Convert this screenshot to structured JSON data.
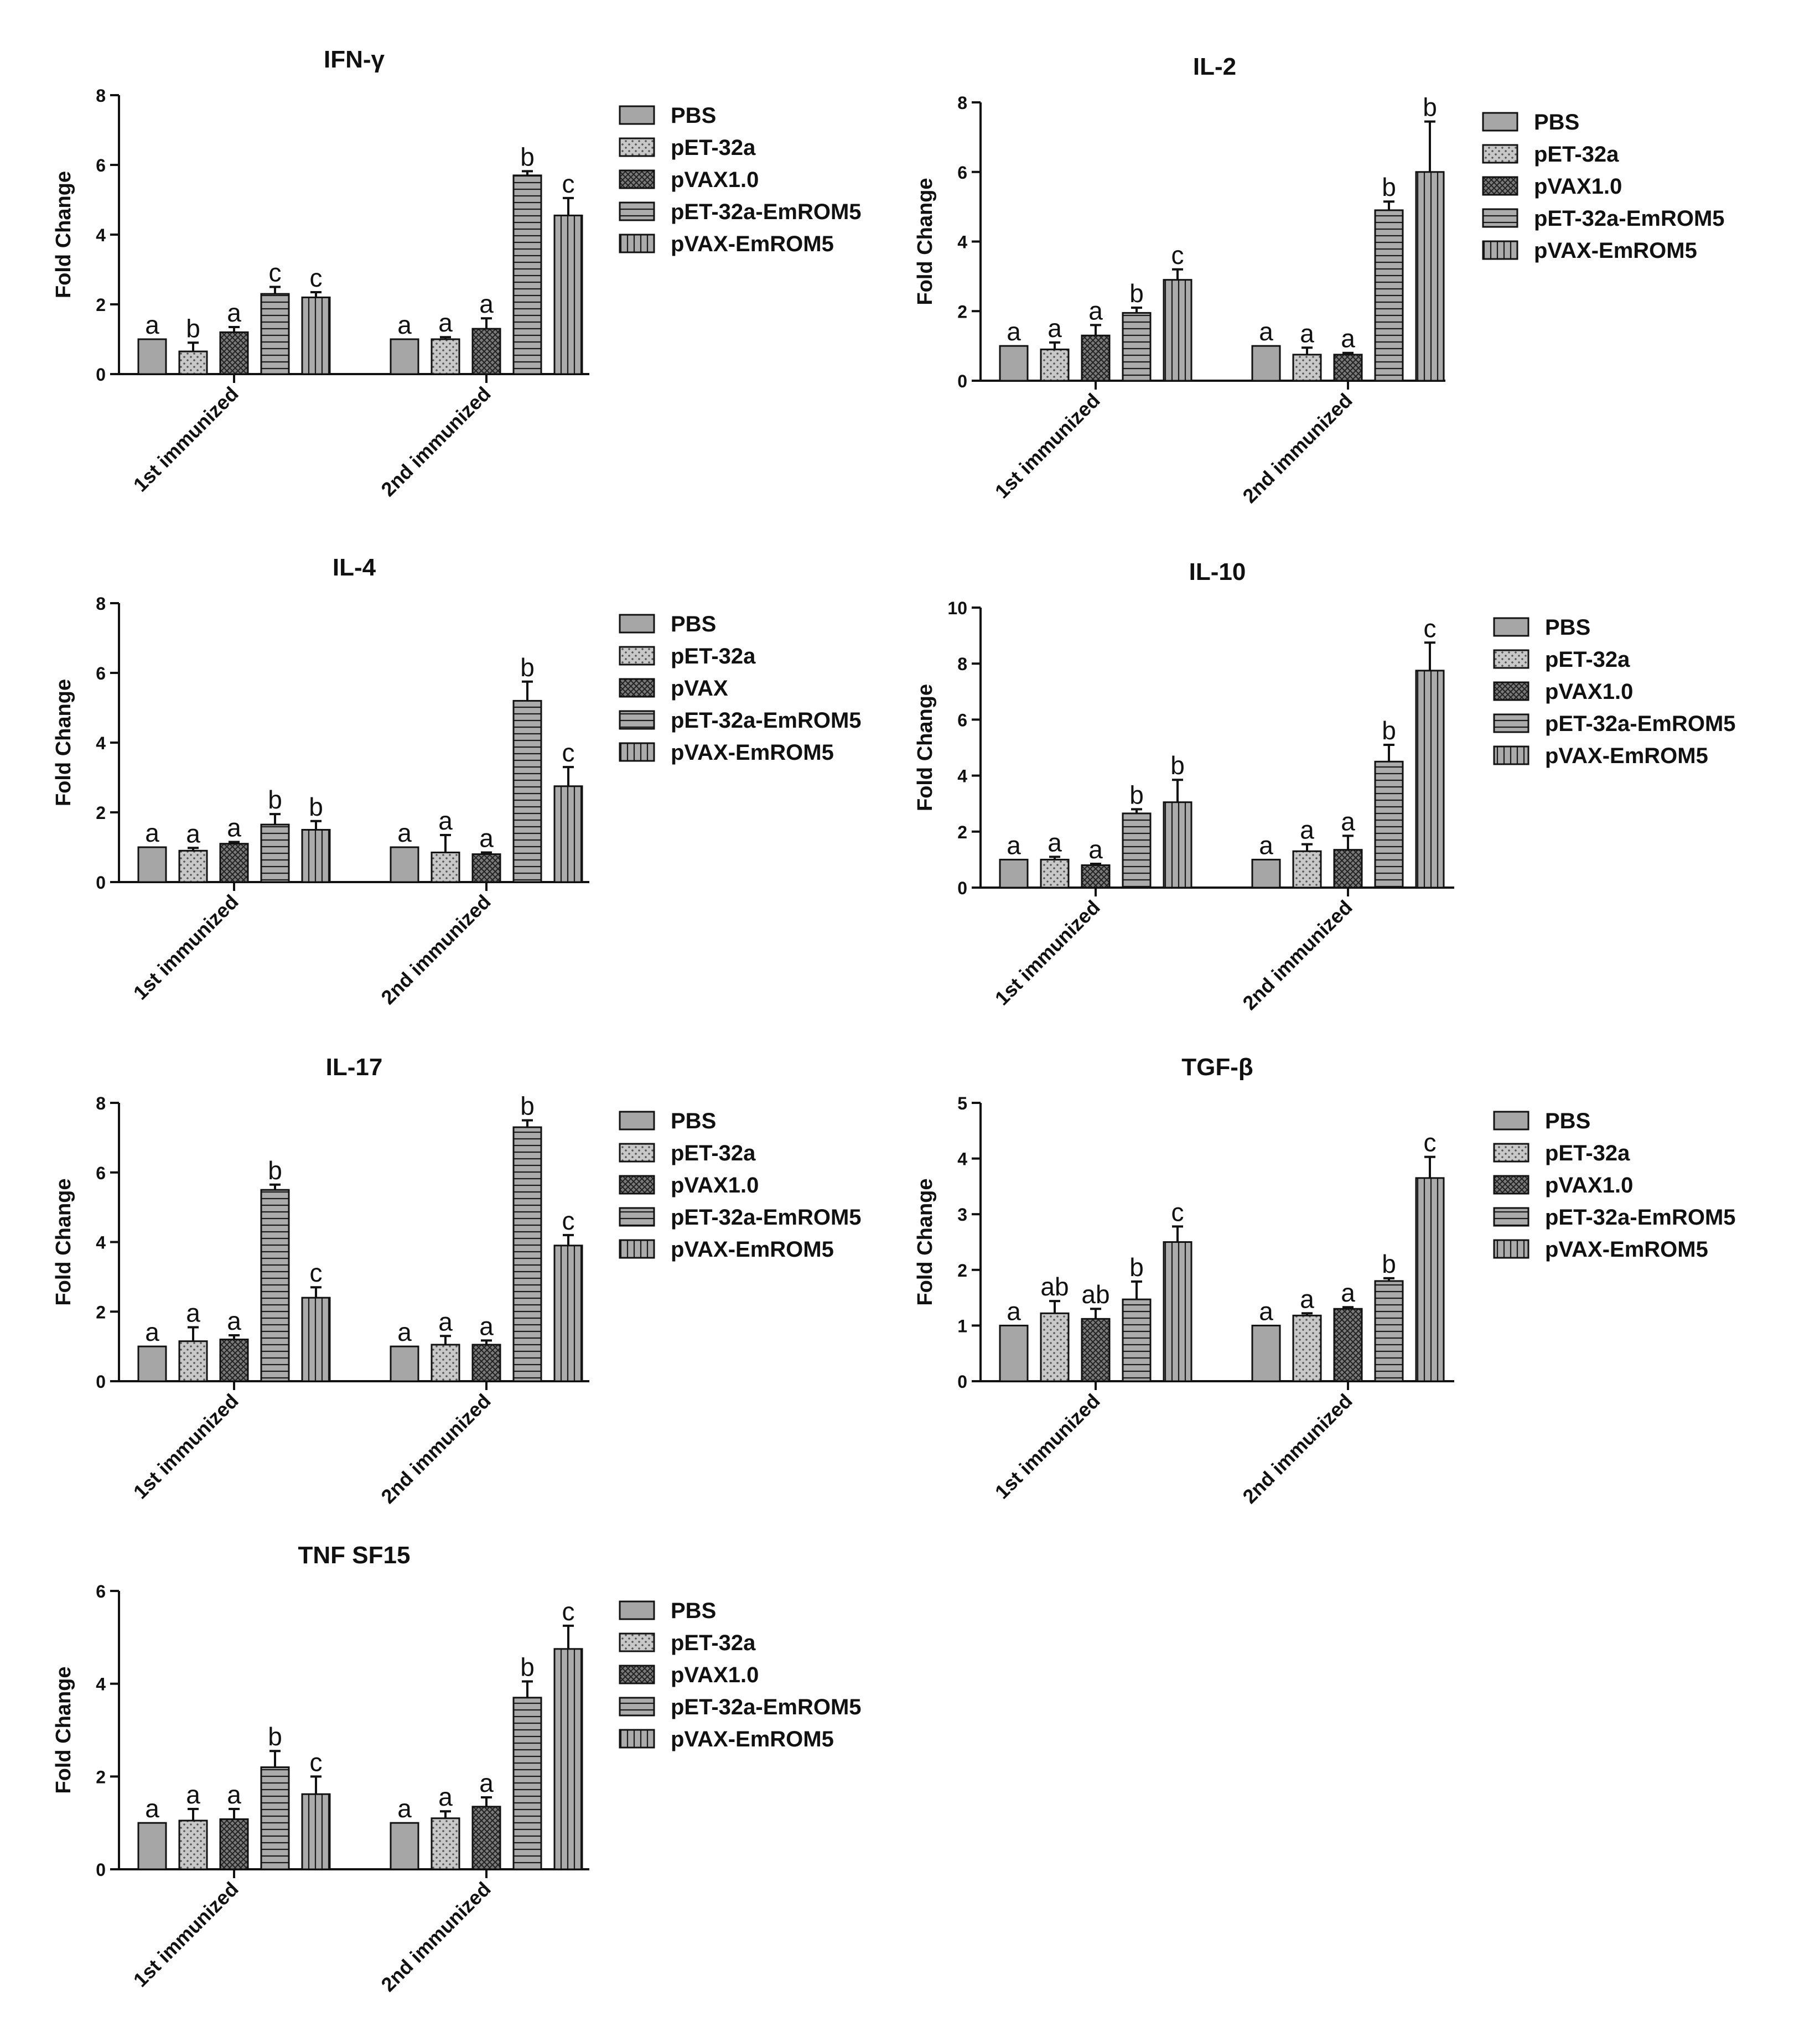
{
  "chart_data": [
    {
      "type": "bar",
      "title": "IFN-γ",
      "ylabel": "Fold Change",
      "xlabel": "",
      "ylim": [
        0,
        8
      ],
      "yticks": [
        0,
        2,
        4,
        6,
        8
      ],
      "categories": [
        "1st immunized",
        "2nd immunized"
      ],
      "legend": [
        "PBS",
        "pET-32a",
        "pVAX1.0",
        "pET-32a-EmROM5",
        "pVAX-EmROM5"
      ],
      "series": [
        {
          "name": "PBS",
          "values": [
            1.0,
            1.0
          ],
          "errors": [
            0.0,
            0.0
          ],
          "labels": [
            "a",
            "a"
          ]
        },
        {
          "name": "pET-32a",
          "values": [
            0.65,
            1.0
          ],
          "errors": [
            0.25,
            0.06
          ],
          "labels": [
            "b",
            "a"
          ]
        },
        {
          "name": "pVAX1.0",
          "values": [
            1.2,
            1.3
          ],
          "errors": [
            0.15,
            0.3
          ],
          "labels": [
            "a",
            "a"
          ]
        },
        {
          "name": "pET-32a-EmROM5",
          "values": [
            2.3,
            5.7
          ],
          "errors": [
            0.2,
            0.12
          ],
          "labels": [
            "c",
            "b"
          ]
        },
        {
          "name": "pVAX-EmROM5",
          "values": [
            2.2,
            4.55
          ],
          "errors": [
            0.15,
            0.5
          ],
          "labels": [
            "c",
            "c"
          ]
        }
      ]
    },
    {
      "type": "bar",
      "title": "IL-2",
      "ylabel": "Fold Change",
      "xlabel": "",
      "ylim": [
        0,
        8
      ],
      "yticks": [
        0,
        2,
        4,
        6,
        8
      ],
      "categories": [
        "1st immunized",
        "2nd immunized"
      ],
      "legend": [
        "PBS",
        "pET-32a",
        "pVAX1.0",
        "pET-32a-EmROM5",
        "pVAX-EmROM5"
      ],
      "series": [
        {
          "name": "PBS",
          "values": [
            1.0,
            1.0
          ],
          "errors": [
            0.0,
            0.0
          ],
          "labels": [
            "a",
            "a"
          ]
        },
        {
          "name": "pET-32a",
          "values": [
            0.9,
            0.75
          ],
          "errors": [
            0.2,
            0.2
          ],
          "labels": [
            "a",
            "a"
          ]
        },
        {
          "name": "pVAX1.0",
          "values": [
            1.3,
            0.75
          ],
          "errors": [
            0.3,
            0.05
          ],
          "labels": [
            "a",
            "a"
          ]
        },
        {
          "name": "pET-32a-EmROM5",
          "values": [
            1.95,
            4.9
          ],
          "errors": [
            0.15,
            0.25
          ],
          "labels": [
            "b",
            "b"
          ]
        },
        {
          "name": "pVAX-EmROM5",
          "values": [
            2.9,
            6.0
          ],
          "errors": [
            0.3,
            1.45
          ],
          "labels": [
            "c",
            "b"
          ]
        }
      ]
    },
    {
      "type": "bar",
      "title": "IL-4",
      "ylabel": "Fold Change",
      "xlabel": "",
      "ylim": [
        0,
        8
      ],
      "yticks": [
        0,
        2,
        4,
        6,
        8
      ],
      "categories": [
        "1st immunized",
        "2nd immunized"
      ],
      "legend": [
        "PBS",
        "pET-32a",
        "pVAX",
        "pET-32a-EmROM5",
        "pVAX-EmROM5"
      ],
      "series": [
        {
          "name": "PBS",
          "values": [
            1.0,
            1.0
          ],
          "errors": [
            0.0,
            0.0
          ],
          "labels": [
            "a",
            "a"
          ]
        },
        {
          "name": "pET-32a",
          "values": [
            0.9,
            0.85
          ],
          "errors": [
            0.08,
            0.5
          ],
          "labels": [
            "a",
            "a"
          ]
        },
        {
          "name": "pVAX",
          "values": [
            1.1,
            0.8
          ],
          "errors": [
            0.05,
            0.05
          ],
          "labels": [
            "a",
            "a"
          ]
        },
        {
          "name": "pET-32a-EmROM5",
          "values": [
            1.65,
            5.2
          ],
          "errors": [
            0.3,
            0.55
          ],
          "labels": [
            "b",
            "b"
          ]
        },
        {
          "name": "pVAX-EmROM5",
          "values": [
            1.5,
            2.75
          ],
          "errors": [
            0.25,
            0.55
          ],
          "labels": [
            "b",
            "c"
          ]
        }
      ]
    },
    {
      "type": "bar",
      "title": "IL-10",
      "ylabel": "Fold Change",
      "xlabel": "",
      "ylim": [
        0,
        10
      ],
      "yticks": [
        0,
        2,
        4,
        6,
        8,
        10
      ],
      "categories": [
        "1st immunized",
        "2nd immunized"
      ],
      "legend": [
        "PBS",
        "pET-32a",
        "pVAX1.0",
        "pET-32a-EmROM5",
        "pVAX-EmROM5"
      ],
      "series": [
        {
          "name": "PBS",
          "values": [
            1.0,
            1.0
          ],
          "errors": [
            0.0,
            0.0
          ],
          "labels": [
            "a",
            "a"
          ]
        },
        {
          "name": "pET-32a",
          "values": [
            1.0,
            1.3
          ],
          "errors": [
            0.1,
            0.25
          ],
          "labels": [
            "a",
            "a"
          ]
        },
        {
          "name": "pVAX1.0",
          "values": [
            0.8,
            1.35
          ],
          "errors": [
            0.05,
            0.5
          ],
          "labels": [
            "a",
            "a"
          ]
        },
        {
          "name": "pET-32a-EmROM5",
          "values": [
            2.65,
            4.5
          ],
          "errors": [
            0.15,
            0.6
          ],
          "labels": [
            "b",
            "b"
          ]
        },
        {
          "name": "pVAX-EmROM5",
          "values": [
            3.05,
            7.75
          ],
          "errors": [
            0.8,
            1.0
          ],
          "labels": [
            "b",
            "c"
          ]
        }
      ]
    },
    {
      "type": "bar",
      "title": "IL-17",
      "ylabel": "Fold Change",
      "xlabel": "",
      "ylim": [
        0,
        8
      ],
      "yticks": [
        0,
        2,
        4,
        6,
        8
      ],
      "categories": [
        "1st immunized",
        "2nd immunized"
      ],
      "legend": [
        "PBS",
        "pET-32a",
        "pVAX1.0",
        "pET-32a-EmROM5",
        "pVAX-EmROM5"
      ],
      "series": [
        {
          "name": "PBS",
          "values": [
            1.0,
            1.0
          ],
          "errors": [
            0.0,
            0.0
          ],
          "labels": [
            "a",
            "a"
          ]
        },
        {
          "name": "pET-32a",
          "values": [
            1.15,
            1.05
          ],
          "errors": [
            0.4,
            0.25
          ],
          "labels": [
            "a",
            "a"
          ]
        },
        {
          "name": "pVAX1.0",
          "values": [
            1.2,
            1.05
          ],
          "errors": [
            0.12,
            0.12
          ],
          "labels": [
            "a",
            "a"
          ]
        },
        {
          "name": "pET-32a-EmROM5",
          "values": [
            5.5,
            7.3
          ],
          "errors": [
            0.15,
            0.2
          ],
          "labels": [
            "b",
            "b"
          ]
        },
        {
          "name": "pVAX-EmROM5",
          "values": [
            2.4,
            3.9
          ],
          "errors": [
            0.3,
            0.3
          ],
          "labels": [
            "c",
            "c"
          ]
        }
      ]
    },
    {
      "type": "bar",
      "title": "TGF-β",
      "ylabel": "Fold Change",
      "xlabel": "",
      "ylim": [
        0,
        5
      ],
      "yticks": [
        0,
        1,
        2,
        3,
        4,
        5
      ],
      "categories": [
        "1st immunized",
        "2nd immunized"
      ],
      "legend": [
        "PBS",
        "pET-32a",
        "pVAX1.0",
        "pET-32a-EmROM5",
        "pVAX-EmROM5"
      ],
      "series": [
        {
          "name": "PBS",
          "values": [
            1.0,
            1.0
          ],
          "errors": [
            0.0,
            0.0
          ],
          "labels": [
            "a",
            "a"
          ]
        },
        {
          "name": "pET-32a",
          "values": [
            1.22,
            1.18
          ],
          "errors": [
            0.22,
            0.04
          ],
          "labels": [
            "ab",
            "a"
          ]
        },
        {
          "name": "pVAX1.0",
          "values": [
            1.12,
            1.3
          ],
          "errors": [
            0.18,
            0.03
          ],
          "labels": [
            "ab",
            "a"
          ]
        },
        {
          "name": "pET-32a-EmROM5",
          "values": [
            1.47,
            1.8
          ],
          "errors": [
            0.32,
            0.05
          ],
          "labels": [
            "b",
            "b"
          ]
        },
        {
          "name": "pVAX-EmROM5",
          "values": [
            2.5,
            3.65
          ],
          "errors": [
            0.28,
            0.38
          ],
          "labels": [
            "c",
            "c"
          ]
        }
      ]
    },
    {
      "type": "bar",
      "title": "TNF SF15",
      "ylabel": "Fold Change",
      "xlabel": "",
      "ylim": [
        0,
        6
      ],
      "yticks": [
        0,
        2,
        4,
        6
      ],
      "categories": [
        "1st immunized",
        "2nd immunized"
      ],
      "legend": [
        "PBS",
        "pET-32a",
        "pVAX1.0",
        "pET-32a-EmROM5",
        "pVAX-EmROM5"
      ],
      "series": [
        {
          "name": "PBS",
          "values": [
            1.0,
            1.0
          ],
          "errors": [
            0.0,
            0.0
          ],
          "labels": [
            "a",
            "a"
          ]
        },
        {
          "name": "pET-32a",
          "values": [
            1.05,
            1.1
          ],
          "errors": [
            0.25,
            0.15
          ],
          "labels": [
            "a",
            "a"
          ]
        },
        {
          "name": "pVAX1.0",
          "values": [
            1.08,
            1.35
          ],
          "errors": [
            0.22,
            0.2
          ],
          "labels": [
            "a",
            "a"
          ]
        },
        {
          "name": "pET-32a-EmROM5",
          "values": [
            2.2,
            3.7
          ],
          "errors": [
            0.35,
            0.35
          ],
          "labels": [
            "b",
            "b"
          ]
        },
        {
          "name": "pVAX-EmROM5",
          "values": [
            1.62,
            4.75
          ],
          "errors": [
            0.38,
            0.5
          ],
          "labels": [
            "c",
            "c"
          ]
        }
      ]
    }
  ]
}
